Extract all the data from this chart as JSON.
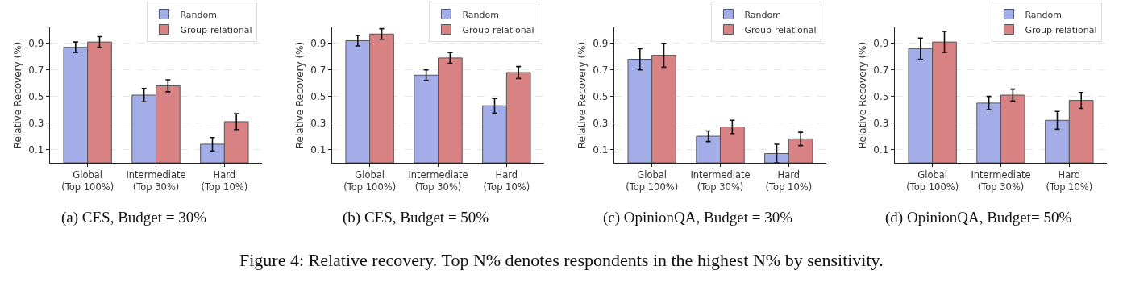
{
  "chart_data": [
    {
      "type": "bar",
      "title": "(a) CES, Budget = 30%",
      "ylabel": "Relative Recovery (%)",
      "categories": [
        "Global\n(Top 100%)",
        "Intermediate\n(Top 30%)",
        "Hard\n(Top 10%)"
      ],
      "ylim": [
        0,
        1.02
      ],
      "yticks": [
        0.1,
        0.3,
        0.5,
        0.7,
        0.9
      ],
      "grid": "y",
      "legend": "top right",
      "series": [
        {
          "name": "Random",
          "color": "#a3aee9",
          "values": [
            0.87,
            0.51,
            0.14
          ],
          "errors": [
            0.04,
            0.05,
            0.05
          ]
        },
        {
          "name": "Group-relational",
          "color": "#d98283",
          "values": [
            0.91,
            0.58,
            0.31
          ],
          "errors": [
            0.04,
            0.045,
            0.06
          ]
        }
      ]
    },
    {
      "type": "bar",
      "title": "(b) CES, Budget = 50%",
      "ylabel": "Relative Recovery (%)",
      "categories": [
        "Global\n(Top 100%)",
        "Intermediate\n(Top 30%)",
        "Hard\n(Top 10%)"
      ],
      "ylim": [
        0,
        1.02
      ],
      "yticks": [
        0.1,
        0.3,
        0.5,
        0.7,
        0.9
      ],
      "grid": "y",
      "legend": "top right",
      "series": [
        {
          "name": "Random",
          "color": "#a3aee9",
          "values": [
            0.92,
            0.66,
            0.43
          ],
          "errors": [
            0.04,
            0.04,
            0.055
          ]
        },
        {
          "name": "Group-relational",
          "color": "#d98283",
          "values": [
            0.97,
            0.79,
            0.68
          ],
          "errors": [
            0.04,
            0.04,
            0.045
          ]
        }
      ]
    },
    {
      "type": "bar",
      "title": "(c) OpinionQA, Budget = 30%",
      "ylabel": "Relative Recovery (%)",
      "categories": [
        "Global\n(Top 100%)",
        "Intermediate\n(Top 30%)",
        "Hard\n(Top 10%)"
      ],
      "ylim": [
        0,
        1.02
      ],
      "yticks": [
        0.1,
        0.3,
        0.5,
        0.7,
        0.9
      ],
      "grid": "y",
      "legend": "top right",
      "series": [
        {
          "name": "Random",
          "color": "#a3aee9",
          "values": [
            0.78,
            0.2,
            0.07
          ],
          "errors": [
            0.08,
            0.04,
            0.07
          ]
        },
        {
          "name": "Group-relational",
          "color": "#d98283",
          "values": [
            0.81,
            0.27,
            0.18
          ],
          "errors": [
            0.09,
            0.05,
            0.05
          ]
        }
      ]
    },
    {
      "type": "bar",
      "title": "(d) OpinionQA, Budget= 50%",
      "ylabel": "Relative Recovery (%)",
      "categories": [
        "Global\n(Top 100%)",
        "Intermediate\n(Top 30%)",
        "Hard\n(Top 10%)"
      ],
      "ylim": [
        0,
        1.02
      ],
      "yticks": [
        0.1,
        0.3,
        0.5,
        0.7,
        0.9
      ],
      "grid": "y",
      "legend": "top right",
      "series": [
        {
          "name": "Random",
          "color": "#a3aee9",
          "values": [
            0.86,
            0.45,
            0.32
          ],
          "errors": [
            0.08,
            0.05,
            0.067
          ]
        },
        {
          "name": "Group-relational",
          "color": "#d98283",
          "values": [
            0.91,
            0.51,
            0.47
          ],
          "errors": [
            0.08,
            0.045,
            0.06
          ]
        }
      ],
      "annotations": [
        "Figure 4: Relative recovery. Top N% denotes respondents in the highest N% by sensitivity."
      ]
    }
  ]
}
